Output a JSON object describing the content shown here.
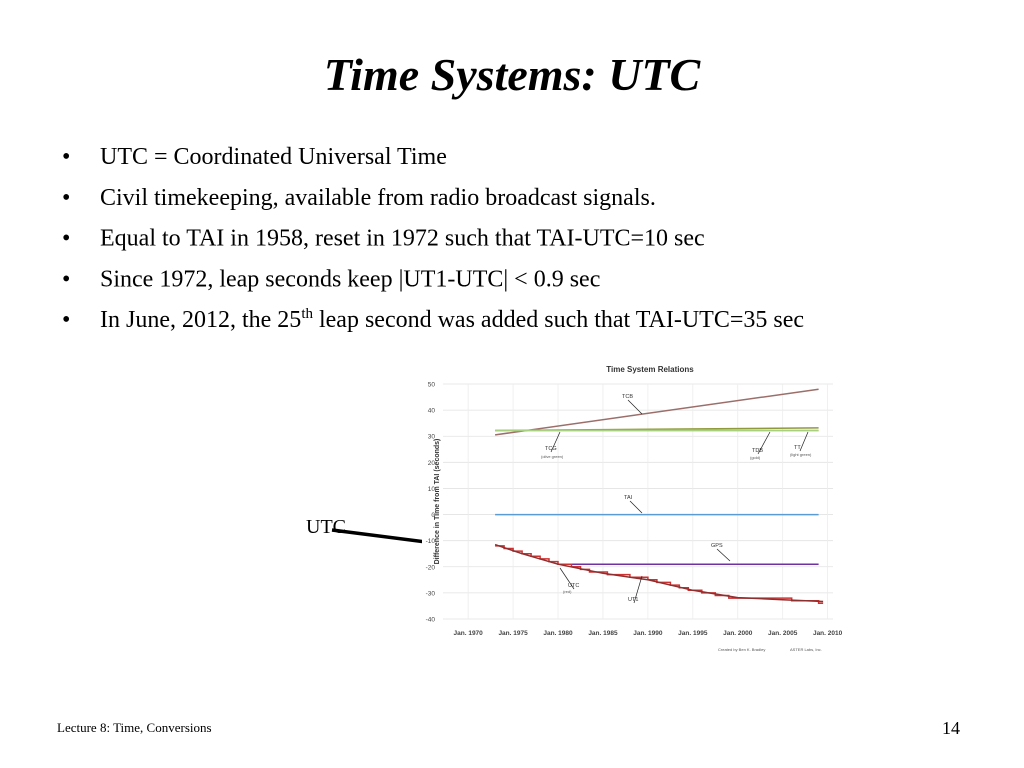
{
  "slide": {
    "title": "Time Systems:  UTC",
    "bullets": [
      [
        "UTC = Coordinated Universal Time"
      ],
      [
        "Civil timekeeping, available from radio broadcast signals."
      ],
      [
        "Equal to TAI in 1958, reset in 1972 such that TAI-UTC=10 sec"
      ],
      [
        "Since 1972, leap seconds keep |UT1-UTC| < 0.9 sec"
      ],
      [
        "In June, 2012, the 25",
        "th",
        " leap second was added such that TAI-UTC=35 sec"
      ]
    ],
    "bullet_symbol": "•",
    "pointer_label": "UTC",
    "footer": "Lecture 8: Time, Conversions",
    "page_number": "14"
  },
  "chart_data": {
    "type": "line",
    "title": "Time System Relations",
    "y_label": "Difference in Time from TAI (seconds)",
    "xlim": [
      1967.2,
      2010.6
    ],
    "ylim": [
      -40,
      50
    ],
    "xticks": [
      {
        "value": 1970,
        "label": "Jan. 1970"
      },
      {
        "value": 1975,
        "label": "Jan. 1975"
      },
      {
        "value": 1980,
        "label": "Jan. 1980"
      },
      {
        "value": 1985,
        "label": "Jan. 1985"
      },
      {
        "value": 1990,
        "label": "Jan. 1990"
      },
      {
        "value": 1995,
        "label": "Jan. 1995"
      },
      {
        "value": 2000,
        "label": "Jan. 2000"
      },
      {
        "value": 2005,
        "label": "Jan. 2005"
      },
      {
        "value": 2010,
        "label": "Jan. 2010"
      }
    ],
    "yticks": [
      -40,
      -30,
      -20,
      -10,
      0,
      10,
      20,
      30,
      40,
      50
    ],
    "grid": true,
    "series": [
      {
        "name": "TCB",
        "color": "#9c6e6a",
        "x": [
          1973,
          2009
        ],
        "values": [
          30.5,
          48
        ]
      },
      {
        "name": "TCG",
        "color": "#8f9a3c",
        "x": [
          1973,
          2009
        ],
        "values": [
          32.2,
          33.2
        ]
      },
      {
        "name": "TDB",
        "color": "#d4b040",
        "x": [
          1973,
          2009
        ],
        "values": [
          32.2,
          32.2
        ]
      },
      {
        "name": "TT",
        "color": "#a8d080",
        "x": [
          1973,
          2009
        ],
        "values": [
          32.18,
          32.18
        ]
      },
      {
        "name": "TAI",
        "color": "#5b9bd5",
        "x": [
          1973,
          2009
        ],
        "values": [
          0,
          0
        ]
      },
      {
        "name": "GPS",
        "color": "#7030a0",
        "x": [
          1980,
          2009
        ],
        "values": [
          -19,
          -19
        ]
      },
      {
        "name": "UTC",
        "color": "#d03030",
        "x": [
          1973,
          1974,
          1974,
          1975,
          1975,
          1976,
          1976,
          1977,
          1977,
          1978,
          1978,
          1979,
          1979,
          1980,
          1980,
          1981.5,
          1981.5,
          1982.5,
          1982.5,
          1983.5,
          1983.5,
          1985.5,
          1985.5,
          1988,
          1988,
          1990,
          1990,
          1991,
          1991,
          1992.5,
          1992.5,
          1993.5,
          1993.5,
          1994.5,
          1994.5,
          1996,
          1996,
          1997.5,
          1997.5,
          1999,
          1999,
          2006,
          2006,
          2009,
          2009,
          2009.5
        ],
        "values": [
          -12,
          -12,
          -13,
          -13,
          -14,
          -14,
          -15,
          -15,
          -16,
          -16,
          -17,
          -17,
          -18,
          -18,
          -19,
          -19,
          -20,
          -20,
          -21,
          -21,
          -22,
          -22,
          -23,
          -23,
          -24,
          -24,
          -25,
          -25,
          -26,
          -26,
          -27,
          -27,
          -28,
          -28,
          -29,
          -29,
          -30,
          -30,
          -31,
          -31,
          -32,
          -32,
          -33,
          -33,
          -34,
          -34
        ]
      },
      {
        "name": "UT1",
        "color": "#8a3030",
        "x": [
          1973,
          1976,
          1980,
          1985,
          1990,
          1995,
          2000,
          2005,
          2009.5
        ],
        "values": [
          -11.5,
          -15,
          -19,
          -22.5,
          -25,
          -29,
          -31.8,
          -32.6,
          -33.3
        ]
      }
    ],
    "annotations": [
      "(olive green)",
      "(gold)",
      "(light green)",
      "(red)",
      "Created by Ben K. Bradley",
      "ASTER Labs, Inc."
    ]
  }
}
